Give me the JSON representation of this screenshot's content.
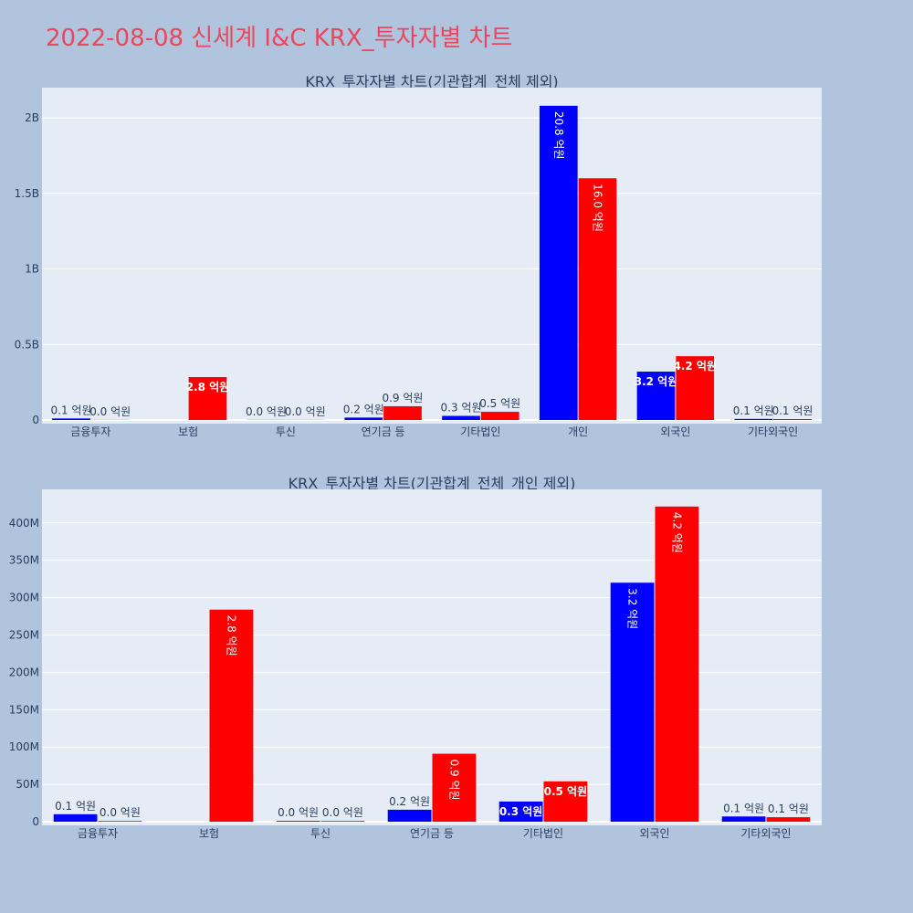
{
  "page": {
    "title": "2022-08-08 신세계 I&C KRX_투자자별 차트",
    "background": "#b0c4de",
    "plot_background": "#e5ecf6",
    "title_color": "#e8475e"
  },
  "chart_data": [
    {
      "type": "bar",
      "title": "KRX_투자자별 차트(기관합계_전체 제외)",
      "categories": [
        "금융투자",
        "보험",
        "투신",
        "연기금 등",
        "기타법인",
        "개인",
        "외국인",
        "기타외국인"
      ],
      "series": [
        {
          "color": "#0000ff",
          "values": [
            10000000,
            0,
            1000000,
            16000000,
            27000000,
            2080000000,
            320000000,
            7000000
          ],
          "labels": [
            "0.1 억원",
            "",
            "0.0 억원",
            "0.2 억원",
            "0.3 억원",
            "20.8 억원",
            "3.2 억원",
            "0.1 억원"
          ]
        },
        {
          "color": "#ff0000",
          "values": [
            1000000,
            284000000,
            1000000,
            91000000,
            54000000,
            1600000000,
            422000000,
            6000000
          ],
          "labels": [
            "0.0 억원",
            "2.8 억원",
            "0.0 억원",
            "0.9 억원",
            "0.5 억원",
            "16.0 억원",
            "4.2 억원",
            "0.1 억원"
          ]
        }
      ],
      "ylim": [
        0,
        2200000000
      ],
      "yticks": [
        {
          "value": 0,
          "label": "0"
        },
        {
          "value": 500000000,
          "label": "0.5B"
        },
        {
          "value": 1000000000,
          "label": "1B"
        },
        {
          "value": 1500000000,
          "label": "1.5B"
        },
        {
          "value": 2000000000,
          "label": "2B"
        }
      ],
      "grid": true,
      "xlabel": "",
      "ylabel": ""
    },
    {
      "type": "bar",
      "title": "KRX_투자자별 차트(기관합계_전체_개인 제외)",
      "categories": [
        "금융투자",
        "보험",
        "투신",
        "연기금 등",
        "기타법인",
        "외국인",
        "기타외국인"
      ],
      "series": [
        {
          "color": "#0000ff",
          "values": [
            10000000,
            0,
            1000000,
            16000000,
            27000000,
            320000000,
            7000000
          ],
          "labels": [
            "0.1 억원",
            "",
            "0.0 억원",
            "0.2 억원",
            "0.3 억원",
            "3.2 억원",
            "0.1 억원"
          ]
        },
        {
          "color": "#ff0000",
          "values": [
            1000000,
            284000000,
            1000000,
            91000000,
            54000000,
            422000000,
            6000000
          ],
          "labels": [
            "0.0 억원",
            "2.8 억원",
            "0.0 억원",
            "0.9 억원",
            "0.5 억원",
            "4.2 억원",
            "0.1 억원"
          ]
        }
      ],
      "ylim": [
        0,
        445000000
      ],
      "yticks": [
        {
          "value": 0,
          "label": "0"
        },
        {
          "value": 50000000,
          "label": "50M"
        },
        {
          "value": 100000000,
          "label": "100M"
        },
        {
          "value": 150000000,
          "label": "150M"
        },
        {
          "value": 200000000,
          "label": "200M"
        },
        {
          "value": 250000000,
          "label": "250M"
        },
        {
          "value": 300000000,
          "label": "300M"
        },
        {
          "value": 350000000,
          "label": "350M"
        },
        {
          "value": 400000000,
          "label": "400M"
        }
      ],
      "grid": true,
      "xlabel": "",
      "ylabel": ""
    }
  ]
}
